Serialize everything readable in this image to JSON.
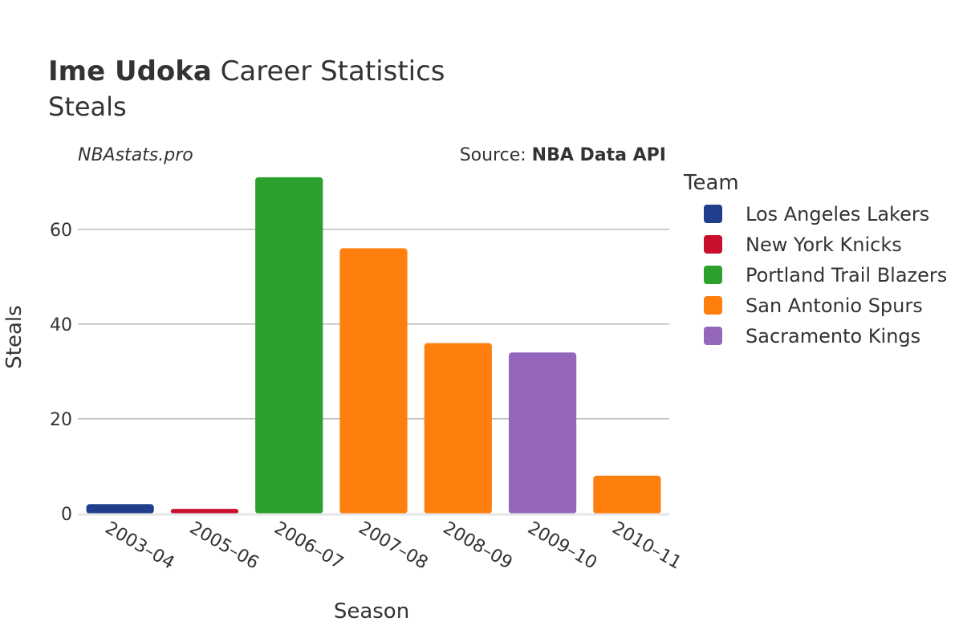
{
  "header": {
    "player_name": "Ime Udoka",
    "title_rest": "Career Statistics",
    "subtitle": "Steals",
    "watermark": "NBAstats.pro",
    "source_prefix": "Source: ",
    "source_name": "NBA Data API"
  },
  "chart_data": {
    "type": "bar",
    "title": "Ime Udoka Career Statistics",
    "subtitle": "Steals",
    "xlabel": "Season",
    "ylabel": "Steals",
    "categories": [
      "2003–04",
      "2005–06",
      "2006–07",
      "2007–08",
      "2008–09",
      "2009–10",
      "2010–11"
    ],
    "values": [
      2,
      1,
      71,
      56,
      36,
      34,
      8
    ],
    "bar_teams": [
      "Los Angeles Lakers",
      "New York Knicks",
      "Portland Trail Blazers",
      "San Antonio Spurs",
      "San Antonio Spurs",
      "Sacramento Kings",
      "San Antonio Spurs"
    ],
    "ylim": [
      0,
      74.7
    ],
    "yticks": [
      0,
      20,
      40,
      60
    ],
    "grid": true,
    "legend": {
      "title": "Team",
      "placement": "right",
      "entries": [
        {
          "name": "Los Angeles Lakers",
          "color": "#1f3f8c"
        },
        {
          "name": "New York Knicks",
          "color": "#c8102e"
        },
        {
          "name": "Portland Trail Blazers",
          "color": "#2ca02c"
        },
        {
          "name": "San Antonio Spurs",
          "color": "#ff7f0e"
        },
        {
          "name": "Sacramento Kings",
          "color": "#9467bd"
        }
      ]
    }
  }
}
